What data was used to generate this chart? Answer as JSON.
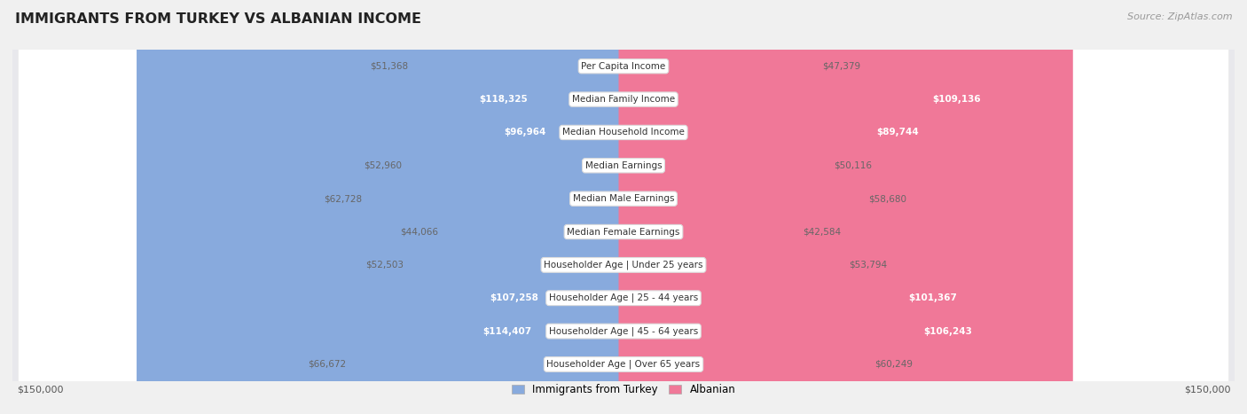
{
  "title": "IMMIGRANTS FROM TURKEY VS ALBANIAN INCOME",
  "source": "Source: ZipAtlas.com",
  "categories": [
    "Per Capita Income",
    "Median Family Income",
    "Median Household Income",
    "Median Earnings",
    "Median Male Earnings",
    "Median Female Earnings",
    "Householder Age | Under 25 years",
    "Householder Age | 25 - 44 years",
    "Householder Age | 45 - 64 years",
    "Householder Age | Over 65 years"
  ],
  "turkey_values": [
    51368,
    118325,
    96964,
    52960,
    62728,
    44066,
    52503,
    107258,
    114407,
    66672
  ],
  "albanian_values": [
    47379,
    109136,
    89744,
    50116,
    58680,
    42584,
    53794,
    101367,
    106243,
    60249
  ],
  "turkey_labels": [
    "$51,368",
    "$118,325",
    "$96,964",
    "$52,960",
    "$62,728",
    "$44,066",
    "$52,503",
    "$107,258",
    "$114,407",
    "$66,672"
  ],
  "albanian_labels": [
    "$47,379",
    "$109,136",
    "$89,744",
    "$50,116",
    "$58,680",
    "$42,584",
    "$53,794",
    "$101,367",
    "$106,243",
    "$60,249"
  ],
  "turkey_color": "#88aadd",
  "albanian_color": "#f07898",
  "turkey_label_inside": [
    false,
    true,
    true,
    false,
    false,
    false,
    false,
    true,
    true,
    false
  ],
  "albanian_label_inside": [
    false,
    true,
    true,
    false,
    false,
    false,
    false,
    true,
    true,
    false
  ],
  "max_value": 150000,
  "legend_turkey": "Immigrants from Turkey",
  "legend_albanian": "Albanian",
  "xlabel_left": "$150,000",
  "xlabel_right": "$150,000",
  "background_color": "#f0f0f0",
  "row_bg_color": "#ffffff",
  "row_bg_alt": "#e8e8ee"
}
